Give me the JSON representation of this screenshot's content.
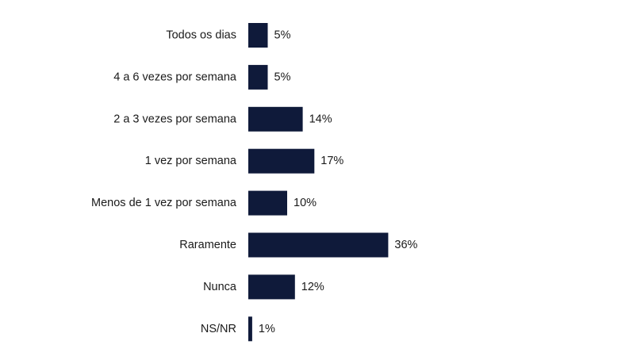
{
  "chart_data": {
    "type": "bar",
    "orientation": "horizontal",
    "categories": [
      "Todos os dias",
      "4 a 6 vezes por semana",
      "2 a 3 vezes por semana",
      "1 vez por semana",
      "Menos de 1 vez por semana",
      "Raramente",
      "Nunca",
      "NS/NR"
    ],
    "values": [
      5,
      5,
      14,
      17,
      10,
      36,
      12,
      1
    ],
    "value_labels": [
      "5%",
      "5%",
      "14%",
      "17%",
      "10%",
      "36%",
      "12%",
      "1%"
    ],
    "unit": "%",
    "title": "",
    "xlabel": "",
    "ylabel": "",
    "grid": false,
    "legend": "none",
    "bar_color": "#0f1a3a"
  }
}
